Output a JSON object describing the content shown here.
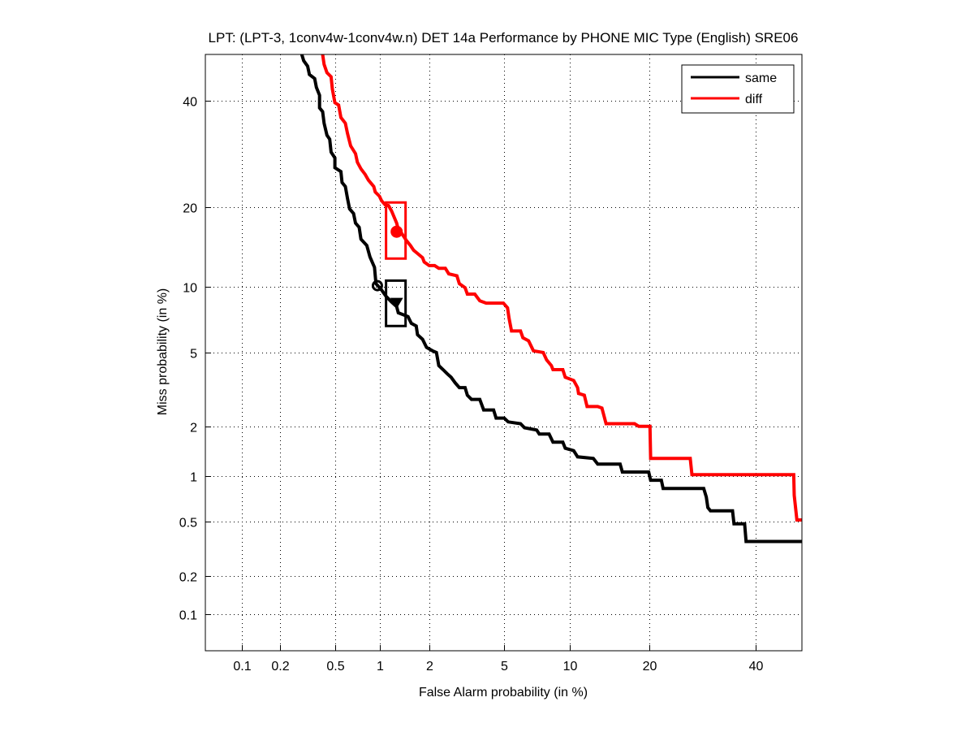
{
  "chart_data": {
    "type": "line",
    "title": "LPT: (LPT-3, 1conv4w-1conv4w.n) DET 14a Performance by PHONE MIC Type (English) SRE06",
    "xlabel": "False Alarm probability (in %)",
    "ylabel": "Miss probability (in %)",
    "scale": "normal-deviate (probit)",
    "xlim": [
      0.05,
      50
    ],
    "ylim": [
      0.05,
      50
    ],
    "xticks": [
      0.1,
      0.2,
      0.5,
      1,
      2,
      5,
      10,
      20,
      40
    ],
    "yticks": [
      0.1,
      0.2,
      0.5,
      1,
      2,
      5,
      10,
      20,
      40
    ],
    "xtick_labels": [
      "0.1",
      "0.2",
      "0.5",
      "1",
      "2",
      "5",
      "10",
      "20",
      "40"
    ],
    "ytick_labels": [
      "0.1",
      "0.2",
      "0.5",
      "1",
      "2",
      "5",
      "10",
      "20",
      "40"
    ],
    "grid": true,
    "legend_position": "top-right",
    "series": [
      {
        "name": "same",
        "color": "#000000",
        "points": [
          [
            0.29,
            50
          ],
          [
            0.3,
            48.6
          ],
          [
            0.32,
            47.4
          ],
          [
            0.33,
            45.6
          ],
          [
            0.36,
            44.7
          ],
          [
            0.37,
            42.8
          ],
          [
            0.39,
            41.1
          ],
          [
            0.39,
            38.4
          ],
          [
            0.41,
            37.6
          ],
          [
            0.42,
            35.2
          ],
          [
            0.44,
            32.8
          ],
          [
            0.46,
            32.0
          ],
          [
            0.47,
            29.5
          ],
          [
            0.5,
            28.4
          ],
          [
            0.5,
            26.6
          ],
          [
            0.55,
            25.9
          ],
          [
            0.56,
            24.0
          ],
          [
            0.59,
            23.3
          ],
          [
            0.61,
            21.3
          ],
          [
            0.63,
            19.7
          ],
          [
            0.67,
            19.0
          ],
          [
            0.69,
            17.6
          ],
          [
            0.73,
            17.0
          ],
          [
            0.75,
            15.4
          ],
          [
            0.82,
            14.6
          ],
          [
            0.86,
            13.2
          ],
          [
            0.92,
            12.0
          ],
          [
            0.94,
            10.3
          ],
          [
            1.02,
            9.7
          ],
          [
            1.09,
            9.1
          ],
          [
            1.18,
            8.6
          ],
          [
            1.27,
            8.2
          ],
          [
            1.3,
            7.7
          ],
          [
            1.49,
            7.4
          ],
          [
            1.56,
            6.9
          ],
          [
            1.67,
            6.7
          ],
          [
            1.7,
            6.1
          ],
          [
            1.82,
            5.8
          ],
          [
            1.92,
            5.3
          ],
          [
            2.08,
            5.1
          ],
          [
            2.19,
            5.0
          ],
          [
            2.26,
            4.3
          ],
          [
            2.39,
            4.1
          ],
          [
            2.52,
            3.9
          ],
          [
            2.65,
            3.74
          ],
          [
            2.79,
            3.5
          ],
          [
            2.94,
            3.3
          ],
          [
            3.16,
            3.3
          ],
          [
            3.25,
            3.0
          ],
          [
            3.42,
            2.85
          ],
          [
            3.78,
            2.85
          ],
          [
            3.96,
            2.49
          ],
          [
            4.45,
            2.49
          ],
          [
            4.58,
            2.24
          ],
          [
            5.03,
            2.24
          ],
          [
            5.26,
            2.13
          ],
          [
            6.03,
            2.08
          ],
          [
            6.3,
            1.97
          ],
          [
            7.17,
            1.91
          ],
          [
            7.37,
            1.81
          ],
          [
            8.16,
            1.81
          ],
          [
            8.49,
            1.62
          ],
          [
            9.36,
            1.62
          ],
          [
            9.59,
            1.49
          ],
          [
            10.4,
            1.44
          ],
          [
            10.8,
            1.32
          ],
          [
            12.5,
            1.29
          ],
          [
            13.0,
            1.19
          ],
          [
            15.8,
            1.19
          ],
          [
            16.1,
            1.06
          ],
          [
            19.9,
            1.06
          ],
          [
            20.2,
            0.94
          ],
          [
            21.9,
            0.94
          ],
          [
            22.2,
            0.83
          ],
          [
            29.4,
            0.83
          ],
          [
            29.9,
            0.73
          ],
          [
            30.2,
            0.62
          ],
          [
            30.7,
            0.59
          ],
          [
            35.1,
            0.59
          ],
          [
            35.4,
            0.48
          ],
          [
            37.6,
            0.48
          ],
          [
            37.9,
            0.36
          ],
          [
            50,
            0.36
          ]
        ],
        "markers": [
          {
            "type": "circle-open",
            "fa": 0.96,
            "miss": 10.1
          },
          {
            "type": "triangle-down",
            "fa": 1.27,
            "miss": 8.5
          }
        ],
        "confidence_box": {
          "fa": [
            1.09,
            1.44
          ],
          "miss": [
            6.7,
            10.6
          ]
        }
      },
      {
        "name": "diff",
        "color": "#ff0000",
        "points": [
          [
            0.41,
            50
          ],
          [
            0.42,
            47.8
          ],
          [
            0.44,
            46.0
          ],
          [
            0.47,
            45.1
          ],
          [
            0.48,
            42.4
          ],
          [
            0.5,
            39.5
          ],
          [
            0.53,
            39.0
          ],
          [
            0.55,
            36.4
          ],
          [
            0.59,
            35.2
          ],
          [
            0.61,
            33.1
          ],
          [
            0.64,
            30.7
          ],
          [
            0.69,
            29.2
          ],
          [
            0.71,
            27.6
          ],
          [
            0.75,
            26.4
          ],
          [
            0.8,
            25.4
          ],
          [
            0.84,
            24.4
          ],
          [
            0.91,
            23.3
          ],
          [
            0.93,
            22.4
          ],
          [
            0.99,
            21.7
          ],
          [
            1.02,
            21.0
          ],
          [
            1.08,
            20.3
          ],
          [
            1.13,
            20.2
          ],
          [
            1.18,
            19.4
          ],
          [
            1.27,
            17.6
          ],
          [
            1.3,
            16.7
          ],
          [
            1.36,
            16.2
          ],
          [
            1.46,
            15.2
          ],
          [
            1.54,
            14.6
          ],
          [
            1.61,
            14.0
          ],
          [
            1.7,
            13.6
          ],
          [
            1.82,
            13.1
          ],
          [
            1.86,
            12.6
          ],
          [
            1.99,
            12.2
          ],
          [
            2.14,
            12.2
          ],
          [
            2.26,
            11.9
          ],
          [
            2.46,
            11.9
          ],
          [
            2.57,
            11.3
          ],
          [
            2.85,
            11.1
          ],
          [
            2.94,
            10.3
          ],
          [
            3.16,
            9.9
          ],
          [
            3.25,
            9.3
          ],
          [
            3.56,
            9.3
          ],
          [
            3.78,
            8.7
          ],
          [
            4.08,
            8.5
          ],
          [
            4.98,
            8.5
          ],
          [
            5.22,
            8.1
          ],
          [
            5.31,
            7.3
          ],
          [
            5.46,
            6.35
          ],
          [
            6.03,
            6.35
          ],
          [
            6.19,
            5.9
          ],
          [
            6.58,
            5.7
          ],
          [
            6.93,
            5.1
          ],
          [
            7.68,
            5.0
          ],
          [
            7.95,
            4.6
          ],
          [
            8.35,
            4.3
          ],
          [
            8.49,
            4.1
          ],
          [
            9.36,
            4.1
          ],
          [
            9.59,
            3.74
          ],
          [
            10.4,
            3.6
          ],
          [
            10.8,
            3.3
          ],
          [
            10.9,
            3.07
          ],
          [
            11.5,
            3.0
          ],
          [
            11.8,
            2.6
          ],
          [
            13.0,
            2.6
          ],
          [
            13.5,
            2.55
          ],
          [
            14.0,
            2.08
          ],
          [
            17.8,
            2.08
          ],
          [
            18.4,
            2.01
          ],
          [
            20.1,
            2.01
          ],
          [
            20.2,
            1.29
          ],
          [
            26.9,
            1.29
          ],
          [
            27.2,
            1.02
          ],
          [
            48.2,
            1.02
          ],
          [
            48.3,
            0.75
          ],
          [
            48.9,
            0.51
          ],
          [
            50,
            0.51
          ]
        ],
        "markers": [
          {
            "type": "circle-filled",
            "fa": 1.27,
            "miss": 16.4
          }
        ],
        "confidence_box": {
          "fa": [
            1.09,
            1.44
          ],
          "miss": [
            13.0,
            20.7
          ]
        }
      }
    ]
  }
}
